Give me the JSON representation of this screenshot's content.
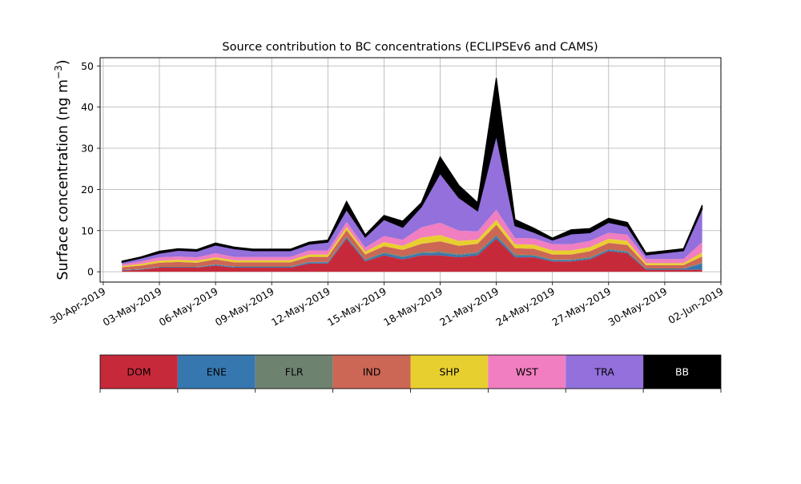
{
  "chart_data": {
    "type": "area",
    "title": "Source contribution to BC concentrations (ECLIPSEv6 and CAMS)",
    "xlabel": "",
    "ylabel": "Surface concentration (ng m",
    "ylabel_superscript": "−3",
    "ylabel_close": ")",
    "xlim": [
      "2019-04-29T20:00",
      "2019-06-02T00:00"
    ],
    "ylim": [
      -2.5,
      52
    ],
    "grid": true,
    "stacked": true,
    "x_tick_labels": [
      "30-Apr-2019",
      "03-May-2019",
      "06-May-2019",
      "09-May-2019",
      "12-May-2019",
      "15-May-2019",
      "18-May-2019",
      "21-May-2019",
      "24-May-2019",
      "27-May-2019",
      "30-May-2019",
      "02-Jun-2019"
    ],
    "x_tick_dates": [
      "2019-04-30",
      "2019-05-03",
      "2019-05-06",
      "2019-05-09",
      "2019-05-12",
      "2019-05-15",
      "2019-05-18",
      "2019-05-21",
      "2019-05-24",
      "2019-05-27",
      "2019-05-30",
      "2019-06-02"
    ],
    "y_ticks": [
      0,
      10,
      20,
      30,
      40,
      50
    ],
    "x": [
      "2019-05-01",
      "2019-05-02",
      "2019-05-03",
      "2019-05-04",
      "2019-05-05",
      "2019-05-06",
      "2019-05-07",
      "2019-05-08",
      "2019-05-09",
      "2019-05-10",
      "2019-05-11",
      "2019-05-12",
      "2019-05-13",
      "2019-05-14",
      "2019-05-15",
      "2019-05-16",
      "2019-05-17",
      "2019-05-18",
      "2019-05-19",
      "2019-05-20",
      "2019-05-21",
      "2019-05-22",
      "2019-05-23",
      "2019-05-24",
      "2019-05-25",
      "2019-05-26",
      "2019-05-27",
      "2019-05-28",
      "2019-05-29",
      "2019-05-30",
      "2019-05-31",
      "2019-06-01"
    ],
    "series": [
      {
        "name": "DOM",
        "color": "#c62a3a",
        "values": [
          0.3,
          0.5,
          1.0,
          1.0,
          1.0,
          1.5,
          1.0,
          1.0,
          1.0,
          1.0,
          2.0,
          2.0,
          8.0,
          2.5,
          4.0,
          3.0,
          4.0,
          4.0,
          3.5,
          4.0,
          8.0,
          3.5,
          3.5,
          2.5,
          2.5,
          3.0,
          5.0,
          4.5,
          0.5,
          0.5,
          0.5,
          0.5
        ]
      },
      {
        "name": "ENE",
        "color": "#3777b0",
        "values": [
          0.1,
          0.1,
          0.1,
          0.1,
          0.1,
          0.2,
          0.2,
          0.2,
          0.2,
          0.2,
          0.3,
          0.3,
          0.4,
          0.3,
          0.5,
          0.5,
          0.5,
          0.6,
          0.5,
          0.5,
          0.6,
          0.4,
          0.4,
          0.3,
          0.3,
          0.3,
          0.3,
          0.3,
          0.2,
          0.2,
          0.2,
          1.5
        ]
      },
      {
        "name": "FLR",
        "color": "#6e8270",
        "values": [
          0.1,
          0.1,
          0.1,
          0.1,
          0.1,
          0.1,
          0.1,
          0.1,
          0.1,
          0.1,
          0.1,
          0.1,
          0.2,
          0.2,
          0.2,
          0.3,
          0.3,
          0.3,
          0.3,
          0.3,
          0.3,
          0.3,
          0.2,
          0.2,
          0.2,
          0.2,
          0.2,
          0.2,
          0.1,
          0.1,
          0.1,
          0.2
        ]
      },
      {
        "name": "IND",
        "color": "#cc6655",
        "values": [
          0.6,
          0.8,
          1.0,
          1.2,
          1.0,
          1.2,
          1.0,
          1.0,
          1.0,
          1.0,
          1.2,
          1.2,
          1.5,
          1.2,
          1.5,
          1.5,
          2.0,
          2.5,
          2.0,
          2.0,
          2.5,
          1.5,
          1.5,
          1.2,
          1.2,
          1.5,
          1.5,
          1.5,
          0.8,
          0.8,
          0.8,
          1.5
        ]
      },
      {
        "name": "SHP",
        "color": "#e8cf30",
        "values": [
          0.3,
          0.4,
          0.5,
          0.5,
          0.5,
          0.5,
          0.5,
          0.5,
          0.5,
          0.5,
          0.6,
          0.6,
          0.8,
          0.7,
          1.0,
          1.0,
          1.5,
          1.5,
          1.2,
          1.0,
          1.2,
          1.0,
          1.0,
          1.0,
          1.0,
          1.0,
          1.0,
          1.0,
          0.5,
          0.5,
          0.5,
          1.0
        ]
      },
      {
        "name": "WST",
        "color": "#f07ec0",
        "values": [
          0.4,
          0.6,
          0.8,
          0.8,
          0.8,
          1.0,
          0.8,
          0.8,
          0.8,
          0.8,
          1.0,
          1.0,
          1.2,
          1.0,
          1.5,
          1.5,
          2.5,
          3.0,
          2.5,
          2.0,
          2.5,
          1.5,
          1.5,
          1.5,
          1.5,
          1.5,
          1.5,
          1.5,
          1.0,
          1.0,
          1.0,
          2.5
        ]
      },
      {
        "name": "TRA",
        "color": "#9370db",
        "values": [
          0.5,
          0.8,
          1.0,
          1.5,
          1.5,
          2.0,
          2.0,
          1.5,
          1.5,
          1.5,
          1.5,
          2.0,
          3.0,
          2.5,
          4.0,
          3.0,
          5.0,
          12.0,
          8.0,
          5.0,
          18.0,
          3.0,
          1.5,
          1.0,
          2.5,
          2.0,
          2.5,
          2.0,
          1.0,
          1.5,
          2.0,
          8.0
        ]
      },
      {
        "name": "BB",
        "color": "#000000",
        "values": [
          0.3,
          0.3,
          0.5,
          0.4,
          0.4,
          0.5,
          0.4,
          0.4,
          0.4,
          0.4,
          0.5,
          0.5,
          2.0,
          0.6,
          1.0,
          1.5,
          1.0,
          4.0,
          3.0,
          2.0,
          14.0,
          1.5,
          1.0,
          0.5,
          1.0,
          1.0,
          1.0,
          1.0,
          0.5,
          0.5,
          0.5,
          1.0
        ]
      }
    ]
  }
}
